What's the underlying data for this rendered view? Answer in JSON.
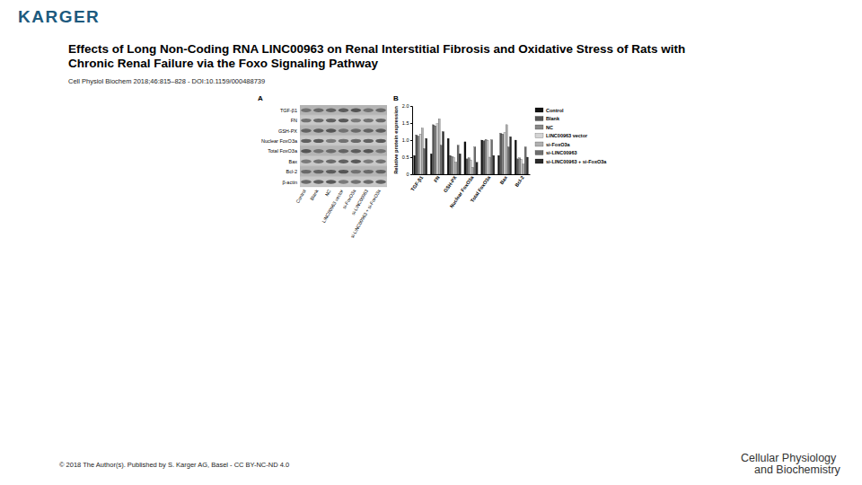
{
  "header": {
    "logo": "KARGER",
    "title_lines": [
      "Effects of Long Non-Coding RNA LINC00963 on Renal Interstitial Fibrosis and Oxidative Stress of Rats with",
      "Chronic Renal Failure via the Foxo Signaling Pathway"
    ],
    "citation": "Cell Physiol Biochem 2018;46:815–828 - DOI:10.1159/000488739"
  },
  "blot": {
    "panel_label": "A",
    "rows": [
      "TGF-β1",
      "FN",
      "GSH-PX",
      "Nuclear FoxO3a",
      "Total FoxO3a",
      "Bax",
      "Bcl-2",
      "β-actin"
    ],
    "lanes": [
      "Control",
      "Blank",
      "NC",
      "LINC00963 vector",
      "si-FoxO3a",
      "si-LINC00963",
      "si-LINC00963 + si-FoxO3a"
    ]
  },
  "chart_data": {
    "type": "bar",
    "title": "B",
    "y_label": "Relative protein expression",
    "categories": [
      "TGF-β1",
      "FN",
      "GSH-PX",
      "Nuclear FoxO3a",
      "Total FoxO3a",
      "Bax",
      "Bcl-2"
    ],
    "series": [
      {
        "name": "Control",
        "color": "#111111",
        "values": [
          0.55,
          0.6,
          1.05,
          0.95,
          1.0,
          0.55,
          1.0
        ]
      },
      {
        "name": "Blank",
        "color": "#555555",
        "values": [
          1.15,
          1.45,
          0.55,
          0.45,
          0.98,
          1.2,
          0.45
        ]
      },
      {
        "name": "NC",
        "color": "#888888",
        "values": [
          1.12,
          1.42,
          0.52,
          0.48,
          1.02,
          1.18,
          0.48
        ]
      },
      {
        "name": "LINC00963 vector",
        "color": "#d4d4d4",
        "values": [
          1.18,
          1.48,
          0.5,
          0.42,
          0.99,
          1.22,
          0.44
        ]
      },
      {
        "name": "si-FoxO3a",
        "color": "#b0b0b0",
        "values": [
          1.35,
          1.62,
          0.35,
          0.2,
          0.5,
          1.45,
          0.3
        ]
      },
      {
        "name": "si-LINC00963",
        "color": "#6e6e6e",
        "values": [
          0.75,
          0.85,
          0.85,
          0.8,
          1.01,
          0.8,
          0.8
        ]
      },
      {
        "name": "si-LINC00963 + si-FoxO3a",
        "color": "#2a2a2a",
        "values": [
          1.05,
          1.25,
          0.6,
          0.35,
          0.55,
          1.1,
          0.5
        ]
      }
    ],
    "ylim": [
      0,
      2
    ],
    "yticks": [
      0,
      0.5,
      {
        "value": 1,
        "label": "1.0"
      },
      1.5,
      {
        "value": 2,
        "label": "2.0"
      }
    ],
    "legend": "right"
  },
  "footer": {
    "copyright": "© 2018 The Author(s). Published by S. Karger AG, Basel - CC BY-NC-ND 4.0",
    "journal_lines": [
      "Cellular Physiology",
      "and Biochemistry"
    ]
  }
}
